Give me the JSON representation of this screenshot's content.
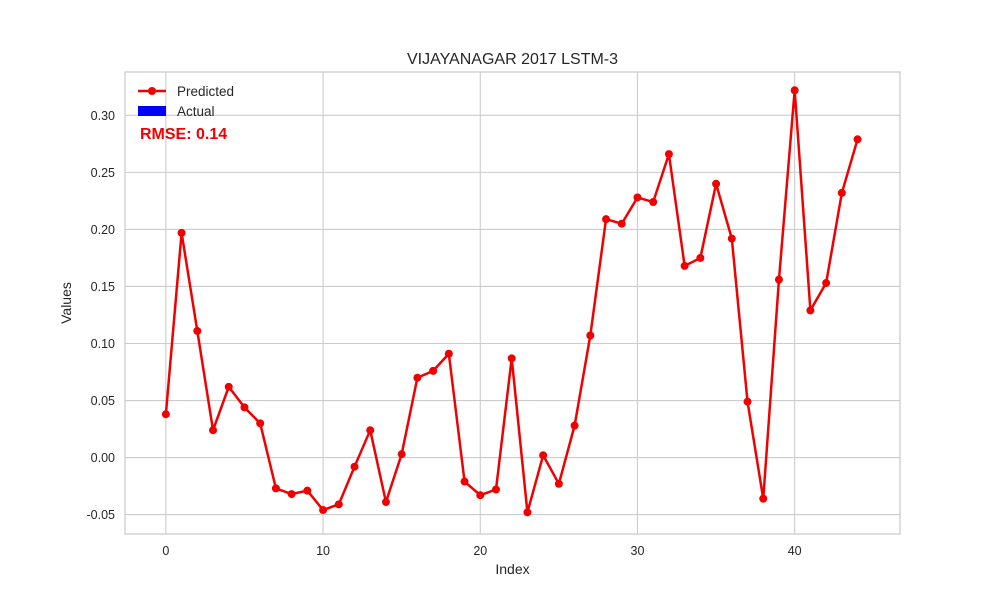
{
  "chart_data": {
    "type": "line",
    "title": "VIJAYANAGAR 2017 LSTM-3",
    "xlabel": "Index",
    "ylabel": "Values",
    "xlim": [
      -2.6,
      46.7
    ],
    "ylim": [
      -0.067,
      0.338
    ],
    "x_ticks": [
      0,
      10,
      20,
      30,
      40
    ],
    "y_ticks": [
      -0.05,
      0.0,
      0.05,
      0.1,
      0.15,
      0.2,
      0.25,
      0.3
    ],
    "grid": true,
    "legend_position": "top-left",
    "annotation": "RMSE: 0.14",
    "series": [
      {
        "name": "Predicted",
        "color": "#f00000",
        "marker": "circle",
        "x": [
          0,
          1,
          2,
          3,
          4,
          5,
          6,
          7,
          8,
          9,
          10,
          11,
          12,
          13,
          14,
          15,
          16,
          17,
          18,
          19,
          20,
          21,
          22,
          23,
          24,
          25,
          26,
          27,
          28,
          29,
          30,
          31,
          32,
          33,
          34,
          35,
          36,
          37,
          38,
          39,
          40,
          41,
          42,
          43,
          44
        ],
        "values": [
          0.038,
          0.197,
          0.111,
          0.024,
          0.062,
          0.044,
          0.03,
          -0.027,
          -0.032,
          -0.029,
          -0.046,
          -0.041,
          -0.008,
          0.024,
          -0.039,
          0.003,
          0.07,
          0.076,
          0.091,
          -0.021,
          -0.033,
          -0.028,
          0.087,
          -0.048,
          0.002,
          -0.023,
          0.028,
          0.107,
          0.209,
          0.205,
          0.228,
          0.224,
          0.266,
          0.168,
          0.175,
          0.24,
          0.192,
          0.049,
          -0.036,
          0.156,
          0.322,
          0.129,
          0.153,
          0.232,
          0.279
        ]
      },
      {
        "name": "Actual",
        "color": "#0000ff",
        "type": "bar",
        "values": []
      }
    ]
  }
}
